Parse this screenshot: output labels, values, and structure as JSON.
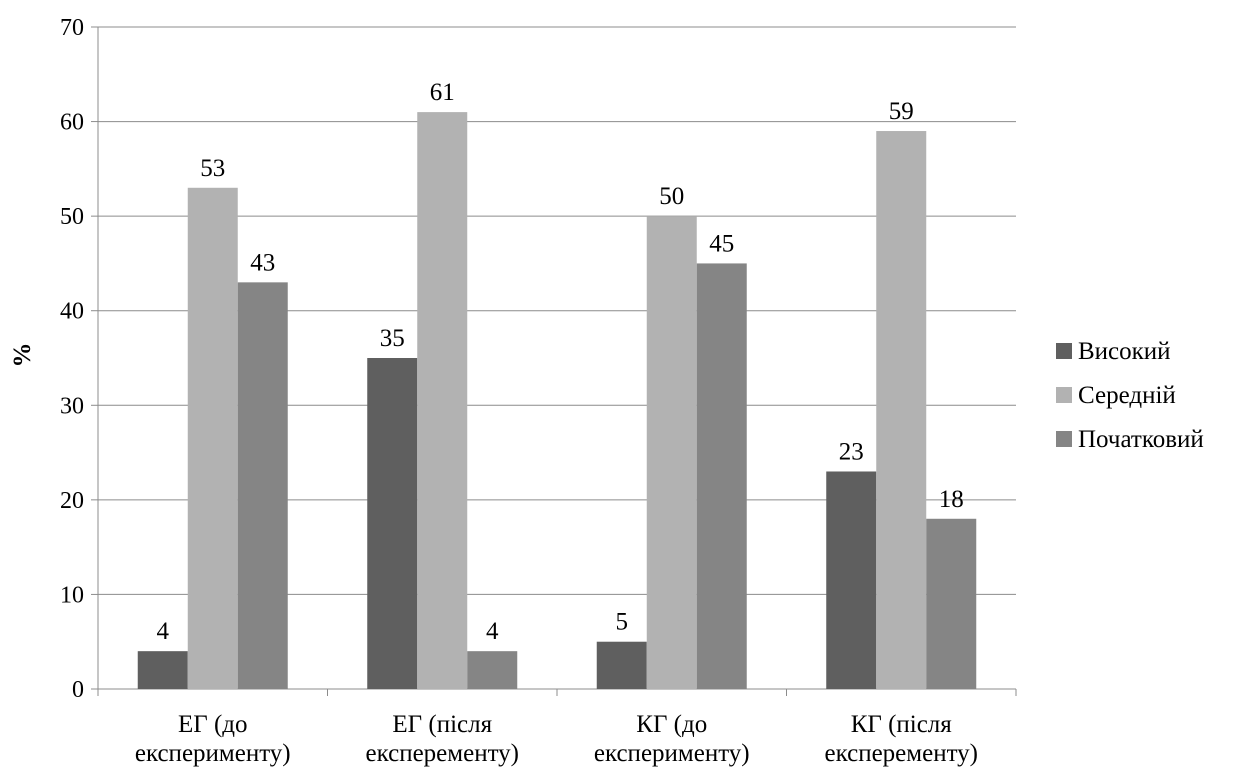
{
  "chart_data": {
    "type": "bar",
    "ylabel": "%",
    "ylim": [
      0,
      70
    ],
    "ytick_step": 10,
    "grid": true,
    "legend_position": "right",
    "categories": [
      [
        "ЕГ (до",
        "експерименту)"
      ],
      [
        "ЕГ (після",
        "експеременту)"
      ],
      [
        "КГ (до",
        "експерименту)"
      ],
      [
        "КГ (після",
        "експеременту)"
      ]
    ],
    "series": [
      {
        "name": "Високий",
        "color": "#5f5f5f",
        "values": [
          4,
          35,
          5,
          23
        ]
      },
      {
        "name": "Середній",
        "color": "#b2b2b2",
        "values": [
          53,
          61,
          50,
          59
        ]
      },
      {
        "name": "Початковий",
        "color": "#858585",
        "values": [
          43,
          4,
          45,
          18
        ]
      }
    ]
  }
}
